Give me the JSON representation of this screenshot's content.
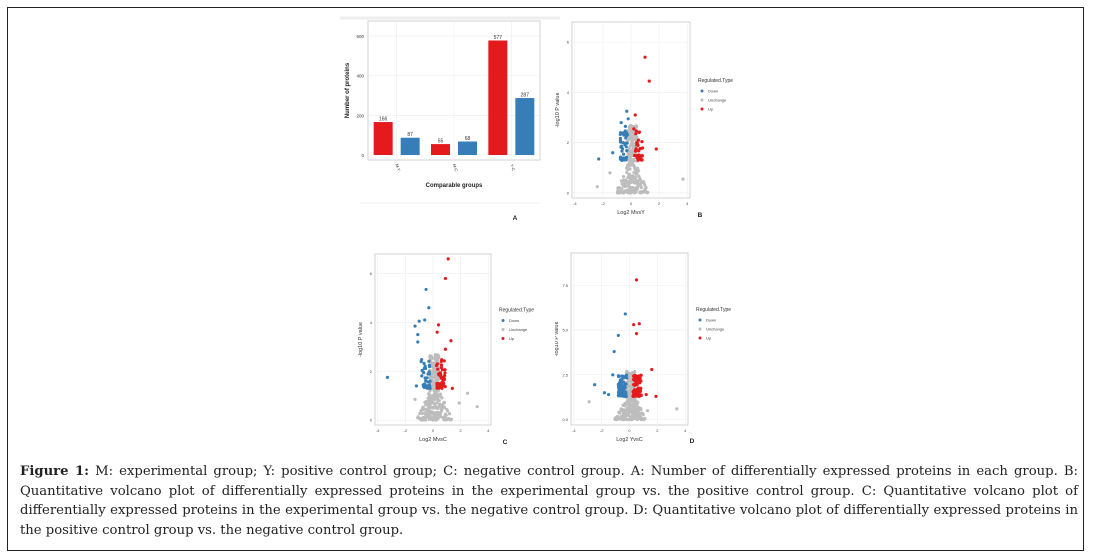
{
  "figure": {
    "caption_label": "Figure 1:",
    "caption_text": " M: experimental group; Y: positive control group; C: negative control group. A: Number of differentially expressed proteins in each group. B: Quantitative volcano plot of differentially expressed proteins in the experimental group vs. the positive control group. C: Quantitative volcano plot of differentially expressed proteins in the experimental group vs. the negative control group. D: Quantitative volcano plot of differentially expressed proteins in the positive control group vs. the negative control group."
  },
  "colors": {
    "up": "#e41a1c",
    "down": "#377eb8",
    "unchange": "#bdbdbd"
  },
  "chart_data": [
    {
      "panel": "A",
      "type": "bar",
      "xlabel": "Comparable groups",
      "ylabel": "Number of proteins",
      "categories": [
        "M-Y",
        "M-C",
        "Y-C"
      ],
      "series": [
        {
          "name": "Up",
          "values": [
            166,
            55,
            577
          ]
        },
        {
          "name": "Down",
          "values": [
            87,
            68,
            287
          ]
        }
      ],
      "yticks": [
        0,
        200,
        400,
        600
      ],
      "ylim": [
        0,
        650
      ],
      "grid": true
    },
    {
      "panel": "B",
      "type": "scatter",
      "xlabel": "Log2 MvsY",
      "ylabel": "-log10 P value",
      "xticks": [
        -4,
        -2,
        0,
        2,
        4
      ],
      "yticks": [
        0,
        2,
        4,
        6
      ],
      "xlim": [
        -4.2,
        4.2
      ],
      "ylim": [
        -0.2,
        6.8
      ],
      "legend_title": "Regulated.Type",
      "legend": [
        "Down",
        "Unchange",
        "Up"
      ],
      "legend_position": "right",
      "highlights": {
        "up": [
          [
            1.0,
            5.4
          ],
          [
            1.3,
            4.45
          ],
          [
            1.8,
            1.75
          ],
          [
            0.3,
            3.1
          ],
          [
            0.2,
            2.55
          ],
          [
            0.4,
            2.0
          ]
        ],
        "down": [
          [
            -0.3,
            3.25
          ],
          [
            -0.7,
            2.8
          ],
          [
            -0.2,
            2.95
          ],
          [
            -0.4,
            2.65
          ],
          [
            -2.3,
            1.35
          ],
          [
            -1.3,
            1.6
          ],
          [
            -0.5,
            2.3
          ]
        ],
        "unchange": [
          [
            -2.4,
            0.25
          ],
          [
            3.7,
            0.55
          ],
          [
            -1.5,
            0.8
          ]
        ]
      },
      "cloud": {
        "up_count": 30,
        "down_count": 40,
        "unchange_count": 260,
        "sig_min": 1.3,
        "xspread": 1.0
      }
    },
    {
      "panel": "C",
      "type": "scatter",
      "xlabel": "Log2 MvsC",
      "ylabel": "-log10 P value",
      "xticks": [
        -4,
        -2,
        0,
        2,
        4
      ],
      "yticks": [
        0,
        2,
        4,
        6
      ],
      "xlim": [
        -4.2,
        4.2
      ],
      "ylim": [
        -0.2,
        6.8
      ],
      "legend_title": "Regulated.Type",
      "legend": [
        "Down",
        "Unchange",
        "Up"
      ],
      "legend_position": "right",
      "highlights": {
        "up": [
          [
            1.1,
            6.6
          ],
          [
            0.9,
            5.8
          ],
          [
            0.4,
            3.9
          ],
          [
            1.3,
            3.25
          ],
          [
            0.9,
            2.9
          ],
          [
            0.3,
            3.6
          ],
          [
            1.4,
            1.3
          ]
        ],
        "down": [
          [
            -3.3,
            1.75
          ],
          [
            -0.5,
            5.35
          ],
          [
            -0.3,
            4.6
          ],
          [
            -1.3,
            3.85
          ],
          [
            -1.0,
            4.05
          ],
          [
            -1.1,
            3.5
          ],
          [
            -1.1,
            3.2
          ],
          [
            -0.6,
            4.1
          ],
          [
            -1.2,
            1.4
          ]
        ],
        "unchange": [
          [
            3.2,
            0.55
          ],
          [
            2.5,
            1.1
          ],
          [
            -1.3,
            0.85
          ],
          [
            1.9,
            0.7
          ]
        ]
      },
      "cloud": {
        "up_count": 40,
        "down_count": 40,
        "unchange_count": 280,
        "sig_min": 1.3,
        "xspread": 1.1
      }
    },
    {
      "panel": "D",
      "type": "scatter",
      "xlabel": "Log2 YvsC",
      "ylabel": "-log10 P value",
      "xticks": [
        -4,
        -2,
        0,
        2,
        4
      ],
      "yticks": [
        0.0,
        2.5,
        5.0,
        7.5
      ],
      "xlim": [
        -4.2,
        4.2
      ],
      "ylim": [
        -0.3,
        9.3
      ],
      "legend_title": "Regulated.Type",
      "legend": [
        "Down",
        "Unchange",
        "Up"
      ],
      "legend_position": "right",
      "highlights": {
        "up": [
          [
            0.5,
            7.8
          ],
          [
            0.3,
            5.3
          ],
          [
            0.7,
            5.35
          ],
          [
            0.5,
            4.8
          ],
          [
            1.6,
            2.8
          ],
          [
            1.9,
            1.3
          ],
          [
            1.2,
            1.4
          ]
        ],
        "down": [
          [
            -2.5,
            1.95
          ],
          [
            -0.3,
            5.9
          ],
          [
            -0.8,
            4.7
          ],
          [
            -1.1,
            3.8
          ],
          [
            -1.5,
            1.4
          ],
          [
            -1.2,
            2.5
          ],
          [
            -1.8,
            1.5
          ]
        ],
        "unchange": [
          [
            -2.9,
            1.0
          ],
          [
            3.4,
            0.6
          ],
          [
            1.3,
            0.5
          ]
        ]
      },
      "cloud": {
        "up_count": 70,
        "down_count": 70,
        "unchange_count": 300,
        "sig_min": 1.3,
        "xspread": 1.0
      }
    }
  ]
}
